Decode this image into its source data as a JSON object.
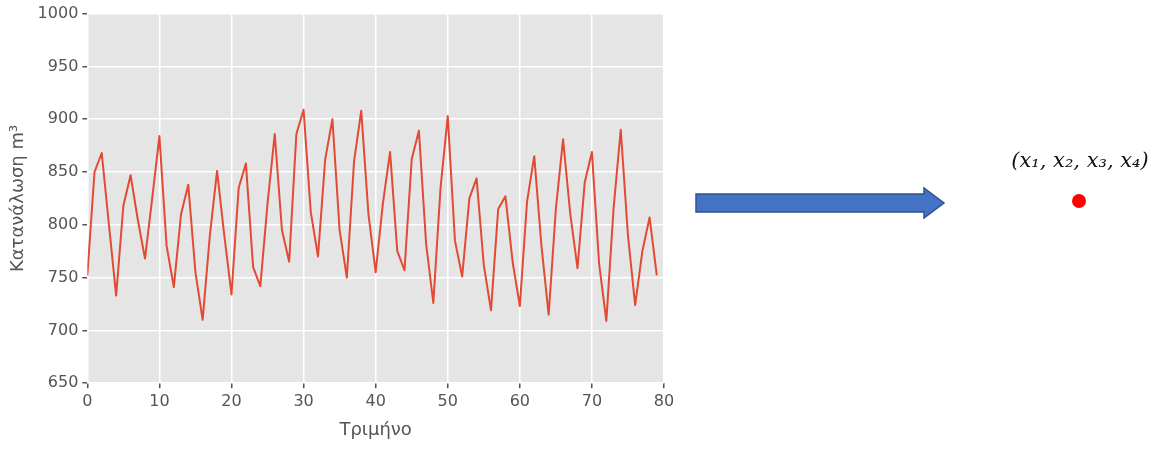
{
  "chart_data": {
    "type": "line",
    "xlabel": "Τριμήνο",
    "ylabel": "Κατανάλωση m³",
    "color": "#e24a33",
    "x": [
      0,
      1,
      2,
      3,
      4,
      5,
      6,
      7,
      8,
      9,
      10,
      11,
      12,
      13,
      14,
      15,
      16,
      17,
      18,
      19,
      20,
      21,
      22,
      23,
      24,
      25,
      26,
      27,
      28,
      29,
      30,
      31,
      32,
      33,
      34,
      35,
      36,
      37,
      38,
      39,
      40,
      41,
      42,
      43,
      44,
      45,
      46,
      47,
      48,
      49,
      50,
      51,
      52,
      53,
      54,
      55,
      56,
      57,
      58,
      59,
      60,
      61,
      62,
      63,
      64,
      65,
      66,
      67,
      68,
      69,
      70,
      71,
      72,
      73,
      74,
      75,
      76,
      77,
      78,
      79
    ],
    "values": [
      752,
      850,
      868,
      800,
      733,
      818,
      847,
      805,
      768,
      825,
      884,
      780,
      741,
      810,
      838,
      755,
      710,
      790,
      851,
      790,
      734,
      835,
      858,
      760,
      742,
      820,
      886,
      795,
      765,
      886,
      909,
      812,
      770,
      862,
      900,
      795,
      750,
      860,
      908,
      810,
      755,
      820,
      869,
      775,
      757,
      862,
      889,
      782,
      726,
      835,
      903,
      785,
      751,
      825,
      844,
      762,
      719,
      815,
      827,
      765,
      723,
      822,
      865,
      780,
      715,
      815,
      881,
      810,
      759,
      840,
      869,
      763,
      709,
      815,
      890,
      790,
      724,
      775,
      807,
      752
    ],
    "xlim": [
      0,
      80
    ],
    "xticks": [
      0,
      10,
      20,
      30,
      40,
      50,
      60,
      70,
      80
    ],
    "ylim": [
      650,
      1000
    ],
    "yticks": [
      650,
      700,
      750,
      800,
      850,
      900,
      950,
      1000
    ],
    "grid": true,
    "marker": "none",
    "line_style": "solid",
    "annotations": [
      "(x₁, x₂, x₃, x₄)"
    ]
  }
}
